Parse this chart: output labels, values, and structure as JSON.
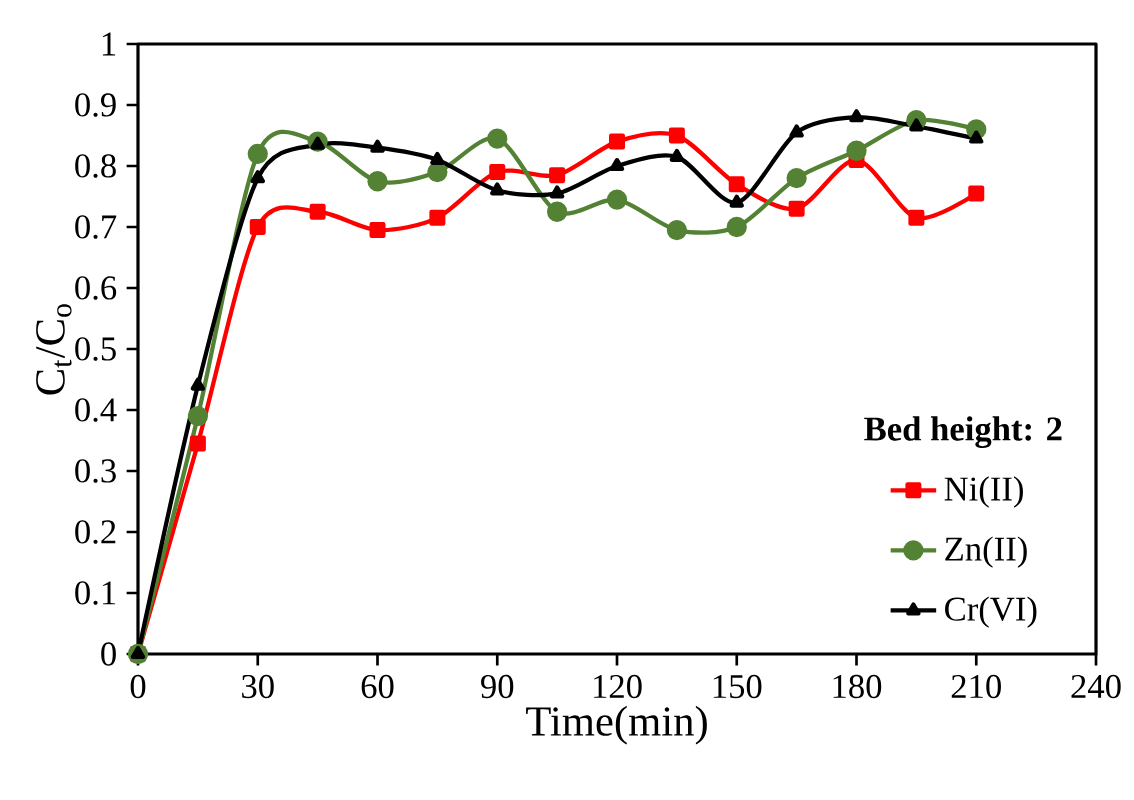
{
  "chart_data": {
    "type": "line",
    "xlabel": "Time(min)",
    "ylabel": "C$_{t}$/C$_{o}$",
    "legend_title": "Bed height: 2",
    "x": [
      0,
      15,
      30,
      45,
      60,
      75,
      90,
      105,
      120,
      135,
      150,
      165,
      180,
      195,
      210
    ],
    "series": [
      {
        "name": "Ni(II)",
        "color": "#ff0000",
        "marker": "square",
        "values": [
          0,
          0.345,
          0.7,
          0.725,
          0.695,
          0.715,
          0.79,
          0.785,
          0.84,
          0.85,
          0.77,
          0.73,
          0.81,
          0.715,
          0.755
        ]
      },
      {
        "name": "Zn(II)",
        "color": "#548235",
        "marker": "circle",
        "values": [
          0,
          0.39,
          0.82,
          0.84,
          0.775,
          0.79,
          0.845,
          0.725,
          0.745,
          0.695,
          0.7,
          0.78,
          0.825,
          0.875,
          0.86
        ]
      },
      {
        "name": "Cr(VI)",
        "color": "#000000",
        "marker": "triangle",
        "values": [
          0,
          0.44,
          0.78,
          0.835,
          0.83,
          0.81,
          0.76,
          0.755,
          0.8,
          0.815,
          0.74,
          0.855,
          0.88,
          0.865,
          0.845
        ]
      }
    ],
    "xlim": [
      0,
      240
    ],
    "xticks": [
      0,
      30,
      60,
      90,
      120,
      150,
      180,
      210,
      240
    ],
    "ylim": [
      0,
      1
    ],
    "yticks": [
      0,
      0.1,
      0.2,
      0.3,
      0.4,
      0.5,
      0.6,
      0.7,
      0.8,
      0.9,
      1
    ],
    "grid": false,
    "legend": "right"
  }
}
